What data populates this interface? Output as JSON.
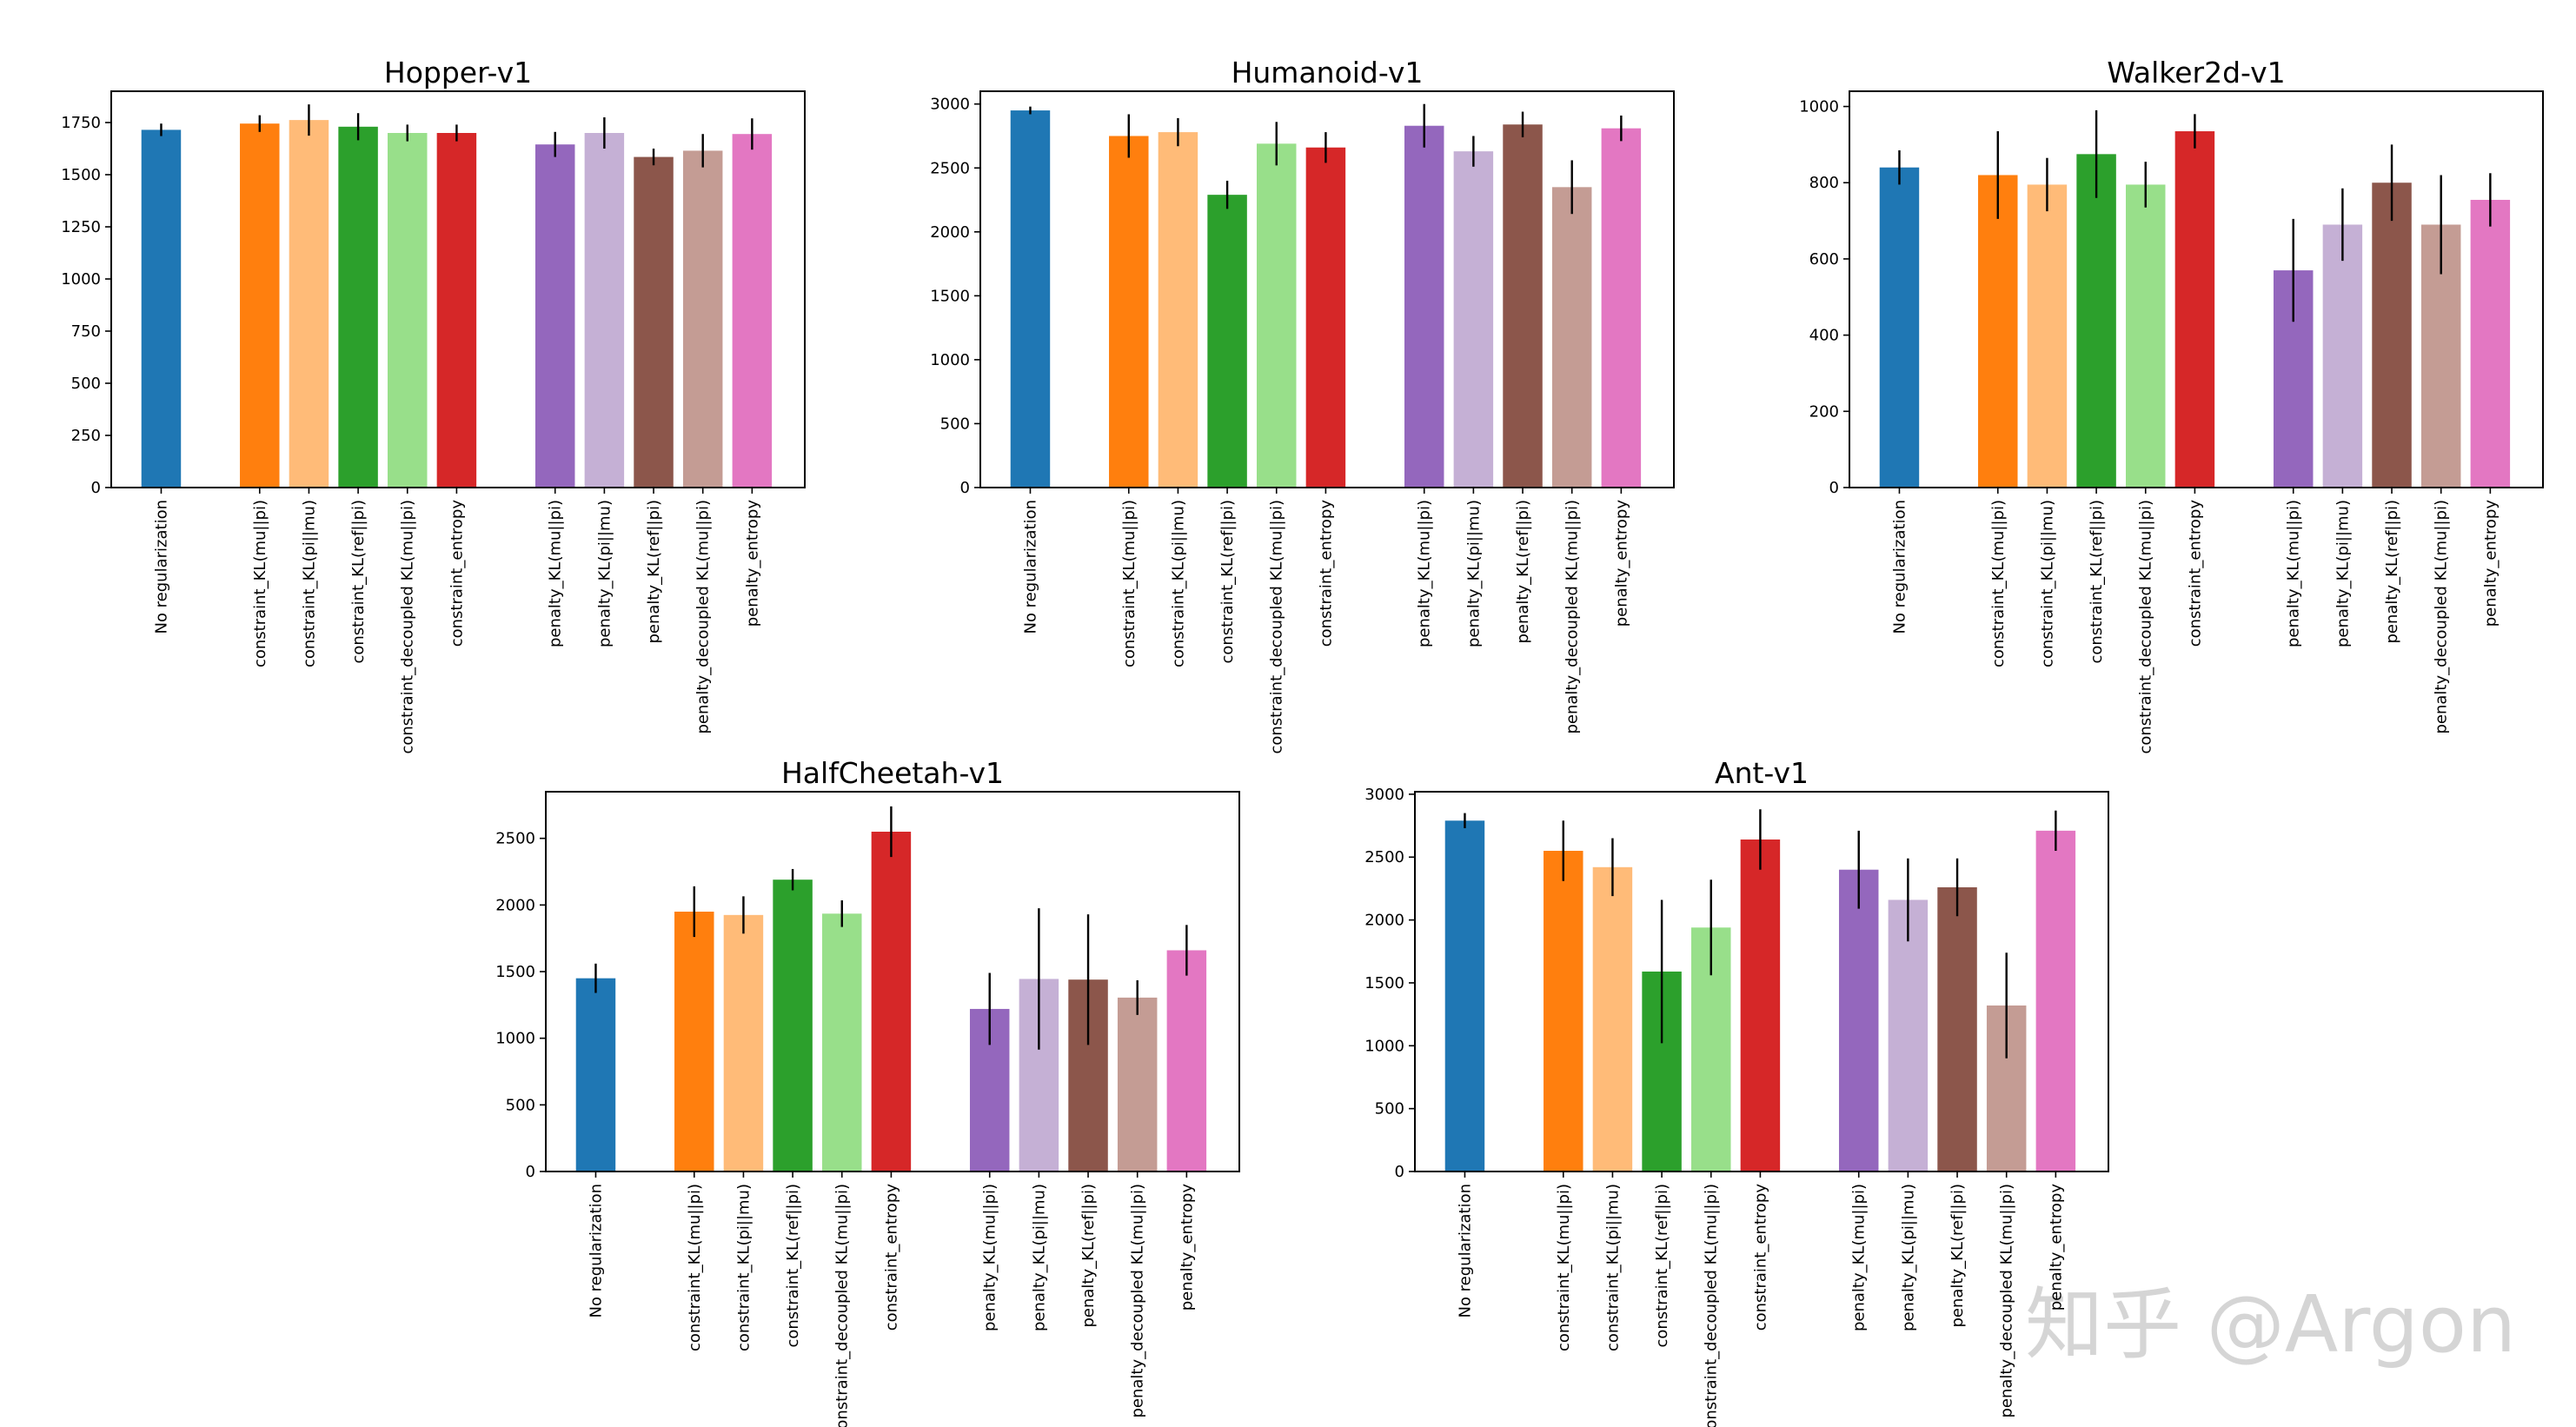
{
  "watermark": "知乎 @Argon",
  "colors": {
    "No regularization": "#1f77b4",
    "constraint_KL(mu||pi)": "#ff7f0e",
    "constraint_KL(pi||mu)": "#ffbb78",
    "constraint_KL(ref||pi)": "#2ca02c",
    "constraint_decoupled KL(mu||pi)": "#98df8a",
    "constraint_entropy": "#d62728",
    "penalty_KL(mu||pi)": "#9467bd",
    "penalty_KL(pi||mu)": "#c5b0d5",
    "penalty_KL(ref||pi)": "#8c564b",
    "penalty_decoupled KL(mu||pi)": "#c49c94",
    "penalty_entropy": "#e377c2"
  },
  "chart_data": [
    {
      "type": "bar",
      "title": "Hopper-v1",
      "categories": [
        "No regularization",
        "constraint_KL(mu||pi)",
        "constraint_KL(pi||mu)",
        "constraint_KL(ref||pi)",
        "constraint_decoupled KL(mu||pi)",
        "constraint_entropy",
        "penalty_KL(mu||pi)",
        "penalty_KL(pi||mu)",
        "penalty_KL(ref||pi)",
        "penalty_decoupled KL(mu||pi)",
        "penalty_entropy"
      ],
      "values": [
        1715,
        1745,
        1762,
        1730,
        1700,
        1700,
        1645,
        1700,
        1585,
        1615,
        1695
      ],
      "errors": [
        30,
        40,
        75,
        65,
        40,
        40,
        60,
        75,
        40,
        80,
        75
      ],
      "ylim": [
        0,
        1900
      ],
      "yticks": [
        0,
        250,
        500,
        750,
        1000,
        1250,
        1500,
        1750
      ],
      "grid": false
    },
    {
      "type": "bar",
      "title": "Humanoid-v1",
      "categories": [
        "No regularization",
        "constraint_KL(mu||pi)",
        "constraint_KL(pi||mu)",
        "constraint_KL(ref||pi)",
        "constraint_decoupled KL(mu||pi)",
        "constraint_entropy",
        "penalty_KL(mu||pi)",
        "penalty_KL(pi||mu)",
        "penalty_KL(ref||pi)",
        "penalty_decoupled KL(mu||pi)",
        "penalty_entropy"
      ],
      "values": [
        2950,
        2750,
        2780,
        2290,
        2690,
        2660,
        2830,
        2630,
        2840,
        2350,
        2810
      ],
      "errors": [
        30,
        170,
        110,
        110,
        170,
        120,
        170,
        120,
        100,
        210,
        100
      ],
      "ylim": [
        0,
        3100
      ],
      "yticks": [
        0,
        500,
        1000,
        1500,
        2000,
        2500,
        3000
      ],
      "grid": false
    },
    {
      "type": "bar",
      "title": "Walker2d-v1",
      "categories": [
        "No regularization",
        "constraint_KL(mu||pi)",
        "constraint_KL(pi||mu)",
        "constraint_KL(ref||pi)",
        "constraint_decoupled KL(mu||pi)",
        "constraint_entropy",
        "penalty_KL(mu||pi)",
        "penalty_KL(pi||mu)",
        "penalty_KL(ref||pi)",
        "penalty_decoupled KL(mu||pi)",
        "penalty_entropy"
      ],
      "values": [
        840,
        820,
        795,
        875,
        795,
        935,
        570,
        690,
        800,
        690,
        755
      ],
      "errors": [
        45,
        115,
        70,
        115,
        60,
        45,
        135,
        95,
        100,
        130,
        70
      ],
      "ylim": [
        0,
        1040
      ],
      "yticks": [
        0,
        200,
        400,
        600,
        800,
        1000
      ],
      "grid": false
    },
    {
      "type": "bar",
      "title": "HalfCheetah-v1",
      "categories": [
        "No regularization",
        "constraint_KL(mu||pi)",
        "constraint_KL(pi||mu)",
        "constraint_KL(ref||pi)",
        "constraint_decoupled KL(mu||pi)",
        "constraint_entropy",
        "penalty_KL(mu||pi)",
        "penalty_KL(pi||mu)",
        "penalty_KL(ref||pi)",
        "penalty_decoupled KL(mu||pi)",
        "penalty_entropy"
      ],
      "values": [
        1450,
        1950,
        1925,
        2190,
        1935,
        2550,
        1220,
        1445,
        1440,
        1305,
        1660
      ],
      "errors": [
        110,
        190,
        140,
        80,
        100,
        190,
        270,
        530,
        490,
        130,
        190
      ],
      "ylim": [
        0,
        2850
      ],
      "yticks": [
        0,
        500,
        1000,
        1500,
        2000,
        2500
      ],
      "grid": false
    },
    {
      "type": "bar",
      "title": "Ant-v1",
      "categories": [
        "No regularization",
        "constraint_KL(mu||pi)",
        "constraint_KL(pi||mu)",
        "constraint_KL(ref||pi)",
        "constraint_decoupled KL(mu||pi)",
        "constraint_entropy",
        "penalty_KL(mu||pi)",
        "penalty_KL(pi||mu)",
        "penalty_KL(ref||pi)",
        "penalty_decoupled KL(mu||pi)",
        "penalty_entropy"
      ],
      "values": [
        2790,
        2550,
        2420,
        1590,
        1940,
        2640,
        2400,
        2160,
        2260,
        1320,
        2710
      ],
      "errors": [
        60,
        240,
        230,
        570,
        380,
        240,
        310,
        330,
        230,
        420,
        160
      ],
      "ylim": [
        0,
        3020
      ],
      "yticks": [
        0,
        500,
        1000,
        1500,
        2000,
        2500,
        3000
      ],
      "grid": false
    }
  ]
}
